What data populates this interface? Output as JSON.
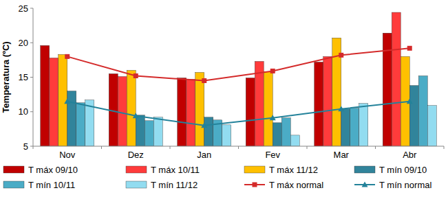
{
  "chart_data": {
    "type": "bar",
    "ylabel": "Temperatura (ºC)",
    "categories": [
      "Nov",
      "Dez",
      "Jan",
      "Fev",
      "Mar",
      "Abr"
    ],
    "ylim": [
      5,
      25
    ],
    "yticks": [
      5,
      10,
      15,
      20,
      25
    ],
    "grid": false,
    "legend": "bottom",
    "series": [
      {
        "name": "T máx 09/10",
        "color": "#c00000",
        "type": "bar",
        "values": [
          19.6,
          15.5,
          14.9,
          14.9,
          17.2,
          21.4
        ]
      },
      {
        "name": "T máx 10/11",
        "color": "#ff3b3b",
        "type": "bar",
        "values": [
          17.8,
          15.1,
          14.7,
          17.3,
          18.0,
          24.4
        ]
      },
      {
        "name": "T máx 11/12",
        "color": "#ffc000",
        "type": "bar",
        "values": [
          18.3,
          16.0,
          15.7,
          15.8,
          20.7,
          18.0
        ]
      },
      {
        "name": "T mín 09/10",
        "color": "#31849b",
        "type": "bar",
        "values": [
          13.0,
          9.5,
          9.2,
          8.4,
          10.4,
          13.8
        ]
      },
      {
        "name": "T mín 10/11",
        "color": "#4bacc6",
        "type": "bar",
        "values": [
          11.3,
          8.7,
          8.8,
          9.1,
          10.5,
          15.2
        ]
      },
      {
        "name": "T mín 11/12",
        "color": "#92dcf0",
        "type": "bar",
        "values": [
          11.7,
          9.2,
          8.1,
          6.6,
          11.2,
          10.9
        ]
      },
      {
        "name": "T máx normal",
        "color": "#d42a2a",
        "type": "line",
        "marker": "square",
        "values": [
          18.0,
          15.2,
          14.5,
          15.9,
          18.2,
          19.2
        ]
      },
      {
        "name": "T mín normal",
        "color": "#23829a",
        "type": "line",
        "marker": "triangle",
        "values": [
          11.5,
          9.4,
          8.0,
          9.1,
          10.4,
          11.5
        ]
      }
    ]
  }
}
